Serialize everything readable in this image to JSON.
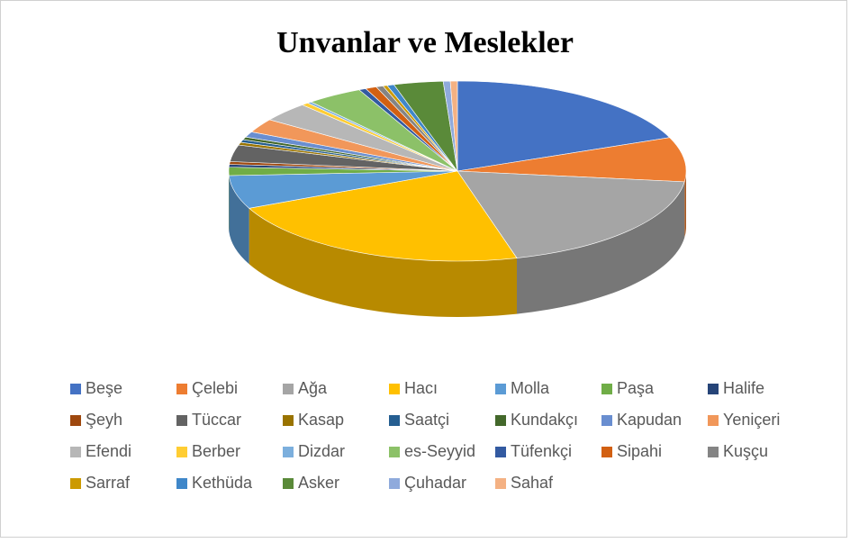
{
  "chart_data": {
    "type": "pie",
    "title": "Unvanlar ve Meslekler",
    "three_d": true,
    "legend": "bottom",
    "categories": [
      "Beşe",
      "Çelebi",
      "Ağa",
      "Hacı",
      "Molla",
      "Paşa",
      "Halife",
      "Şeyh",
      "Tüccar",
      "Kasap",
      "Saatçi",
      "Kundakçı",
      "Kapudan",
      "Yeniçeri",
      "Efendi",
      "Berber",
      "Dizdar",
      "es-Seyyid",
      "Tüfenkçi",
      "Sipahi",
      "Kuşçu",
      "Sarraf",
      "Kethüda",
      "Asker",
      "Çuhadar",
      "Sahaf"
    ],
    "values": [
      19,
      8,
      19,
      22.5,
      6,
      1.5,
      0.5,
      0.5,
      3,
      0.5,
      0.5,
      0.5,
      1,
      2.5,
      3.5,
      0.5,
      0.3,
      4,
      0.5,
      0.8,
      0.5,
      0.3,
      0.5,
      3.5,
      0.5,
      0.5
    ],
    "colors": [
      "#4472c4",
      "#ed7d31",
      "#a5a5a5",
      "#ffc000",
      "#5b9bd5",
      "#70ad47",
      "#264478",
      "#9e480e",
      "#636363",
      "#997300",
      "#255e91",
      "#43682b",
      "#698ed0",
      "#f1975a",
      "#b7b7b7",
      "#ffcd33",
      "#7cafdd",
      "#8cc168",
      "#335aa1",
      "#d26012",
      "#848484",
      "#cc9a00",
      "#3f87c9",
      "#5a8a39",
      "#8faadc",
      "#f4b183"
    ]
  }
}
